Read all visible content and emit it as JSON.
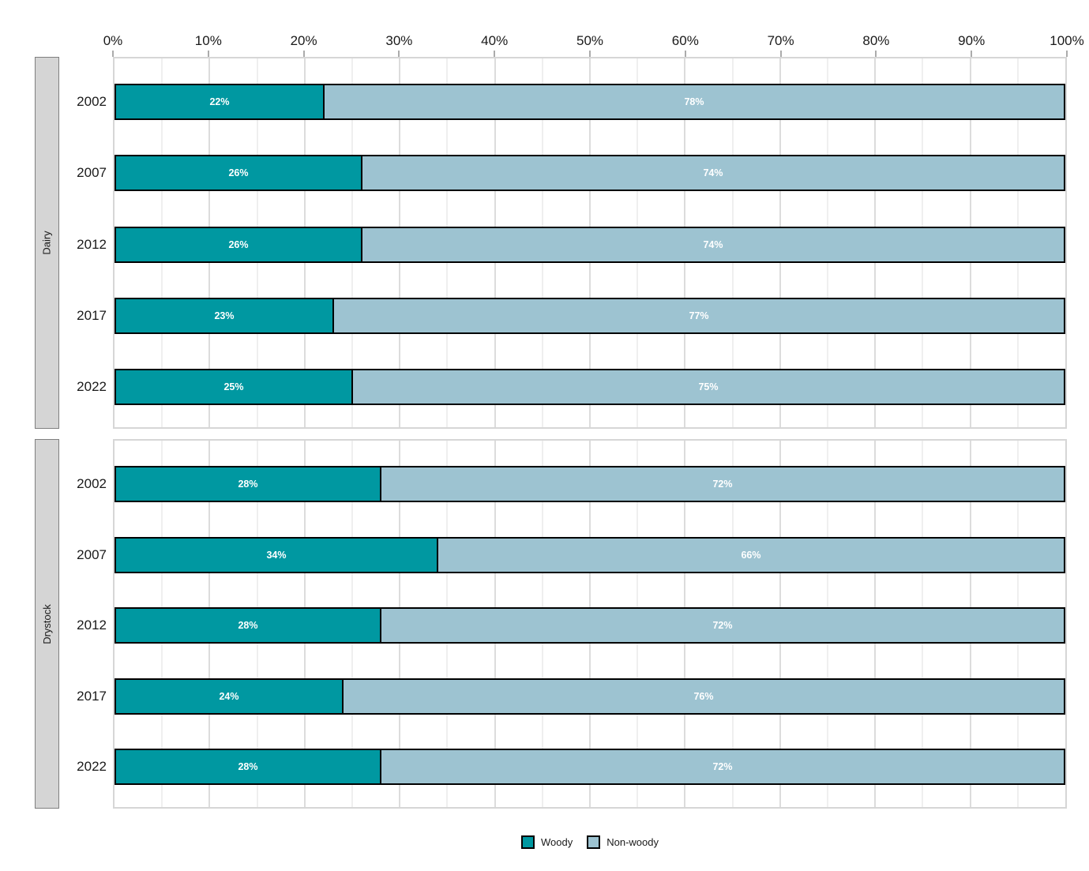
{
  "chart_data": {
    "type": "bar",
    "orientation": "horizontal",
    "stacked": true,
    "grid": "on",
    "legend_position": "bottom-center",
    "xlim": [
      0,
      100
    ],
    "x_tick_labels": [
      "0%",
      "10%",
      "20%",
      "30%",
      "40%",
      "50%",
      "60%",
      "70%",
      "80%",
      "90%",
      "100%"
    ],
    "facets": [
      {
        "label": "Dairy",
        "categories": [
          "2002",
          "2007",
          "2012",
          "2017",
          "2022"
        ],
        "series": [
          {
            "name": "Woody",
            "values": [
              22,
              26,
              26,
              23,
              25
            ],
            "labels": [
              "22%",
              "26%",
              "26%",
              "23%",
              "25%"
            ]
          },
          {
            "name": "Non-woody",
            "values": [
              78,
              74,
              74,
              77,
              75
            ],
            "labels": [
              "78%",
              "74%",
              "74%",
              "77%",
              "75%"
            ]
          }
        ]
      },
      {
        "label": "Drystock",
        "categories": [
          "2002",
          "2007",
          "2012",
          "2017",
          "2022"
        ],
        "series": [
          {
            "name": "Woody",
            "values": [
              28,
              34,
              28,
              24,
              28
            ],
            "labels": [
              "28%",
              "34%",
              "28%",
              "24%",
              "28%"
            ]
          },
          {
            "name": "Non-woody",
            "values": [
              72,
              66,
              72,
              76,
              72
            ],
            "labels": [
              "72%",
              "66%",
              "72%",
              "76%",
              "72%"
            ]
          }
        ]
      }
    ],
    "legend": [
      {
        "label": "Woody",
        "color": "#0098a1"
      },
      {
        "label": "Non-woody",
        "color": "#9dc3d1"
      }
    ],
    "colors": {
      "woody": "#0098a1",
      "nonwoody": "#9dc3d1"
    }
  }
}
